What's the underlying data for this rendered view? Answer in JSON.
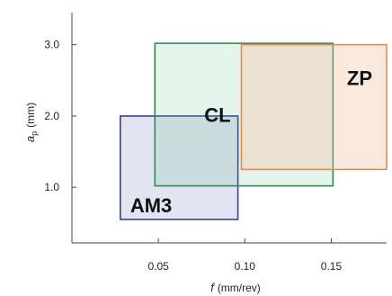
{
  "chart_data": {
    "type": "region",
    "title": "",
    "xlabel": {
      "symbol": "f",
      "unit": "(mm/rev)"
    },
    "ylabel": {
      "symbol": "a",
      "subscript": "p",
      "unit": "(mm)"
    },
    "xlim": [
      0.0,
      0.182
    ],
    "ylim": [
      0.22,
      3.4
    ],
    "xticks": [
      {
        "value": 0.05,
        "label": "0.05"
      },
      {
        "value": 0.1,
        "label": "0.10"
      },
      {
        "value": 0.15,
        "label": "0.15"
      }
    ],
    "yticks": [
      {
        "value": 1.0,
        "label": "1.0"
      },
      {
        "value": 2.0,
        "label": "2.0"
      },
      {
        "value": 3.0,
        "label": "3.0"
      }
    ],
    "grid": false,
    "regions": [
      {
        "name": "AM3",
        "f_range": [
          0.028,
          0.096
        ],
        "ap_range": [
          0.55,
          2.0
        ],
        "stroke": "#3a4388",
        "fill": "#4a55a8",
        "fill_opacity": 0.16
      },
      {
        "name": "CL",
        "f_range": [
          0.048,
          0.151
        ],
        "ap_range": [
          1.02,
          3.02
        ],
        "stroke": "#2c8c55",
        "fill": "#5ab585",
        "fill_opacity": 0.16
      },
      {
        "name": "ZP",
        "f_range": [
          0.098,
          0.182
        ],
        "ap_range": [
          1.25,
          3.0
        ],
        "stroke": "#e88a55",
        "fill": "#f2c19e",
        "fill_opacity": 0.35
      }
    ]
  }
}
